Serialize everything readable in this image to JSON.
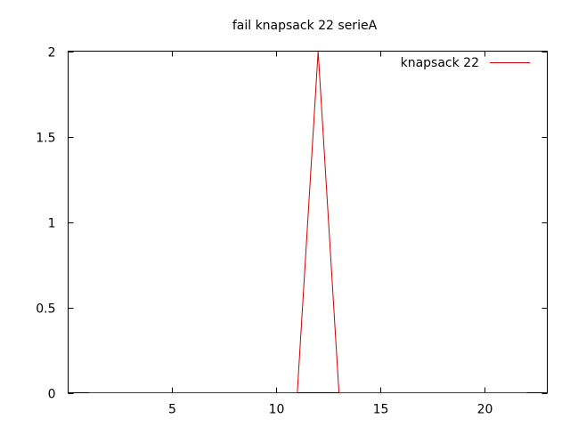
{
  "chart_data": {
    "type": "line",
    "title": "fail knapsack 22 serieA",
    "xlabel": "",
    "ylabel": "",
    "xlim": [
      0,
      23
    ],
    "ylim": [
      0,
      2
    ],
    "x_ticks": [
      5,
      10,
      15,
      20
    ],
    "y_ticks": [
      0,
      0.5,
      1,
      1.5,
      2
    ],
    "x_tick_labels": [
      "5",
      "10",
      "15",
      "20"
    ],
    "y_tick_labels": [
      "0",
      "0.5",
      "1",
      "1.5",
      "2"
    ],
    "grid": false,
    "legend_position": "top-right",
    "series": [
      {
        "name": "knapsack 22",
        "color": "#cc0000",
        "x": [
          1,
          2,
          3,
          4,
          5,
          6,
          7,
          8,
          9,
          10,
          11,
          12,
          13,
          14,
          15,
          16,
          17,
          18,
          19,
          20,
          21,
          22
        ],
        "y": [
          0,
          0,
          0,
          0,
          0,
          0,
          0,
          0,
          0,
          0,
          0,
          2,
          0,
          0,
          0,
          0,
          0,
          0,
          0,
          0,
          0,
          0
        ]
      }
    ]
  }
}
